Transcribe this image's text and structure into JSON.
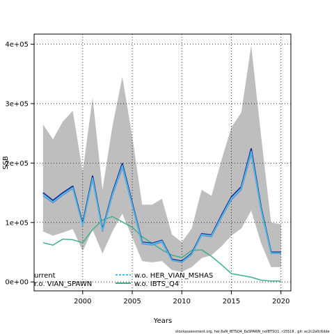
{
  "chart_data": {
    "type": "line",
    "title": "",
    "xlabel": "Years",
    "ylabel": "SSB",
    "xlim": [
      1995.1,
      2021.0
    ],
    "ylim": [
      -15000,
      417000
    ],
    "x_ticks": [
      2000,
      2005,
      2010,
      2015,
      2020
    ],
    "y_ticks": [
      0,
      100000,
      200000,
      300000,
      400000
    ],
    "y_tick_labels": [
      "0e+00",
      "1e+05",
      "2e+05",
      "3e+05",
      "4e+05"
    ],
    "grid": true,
    "x": [
      1996,
      1997,
      1998,
      1999,
      2000,
      2001,
      2002,
      2003,
      2004,
      2005,
      2006,
      2007,
      2008,
      2009,
      2010,
      2011,
      2012,
      2013,
      2014,
      2015,
      2016,
      2017,
      2018,
      2019,
      2020
    ],
    "band": {
      "color": "#bebebe",
      "upper": [
        265000,
        240000,
        270000,
        288000,
        185000,
        310000,
        155000,
        262000,
        345000,
        245000,
        130000,
        130000,
        140000,
        80000,
        67000,
        90000,
        155000,
        145000,
        205000,
        260000,
        285000,
        398000,
        245000,
        100000,
        97000
      ],
      "lower": [
        85000,
        78000,
        83000,
        89000,
        52000,
        88000,
        48000,
        85000,
        115000,
        75000,
        35000,
        33000,
        35000,
        20000,
        17000,
        25000,
        40000,
        45000,
        60000,
        78000,
        90000,
        120000,
        65000,
        25000,
        25000
      ]
    },
    "series": [
      {
        "name": "current",
        "color": "#1f1f8f",
        "values": [
          150000,
          137000,
          150000,
          161000,
          98000,
          178000,
          88000,
          150000,
          199000,
          133000,
          67000,
          65000,
          70000,
          38000,
          35000,
          48000,
          81000,
          79000,
          112000,
          143000,
          160000,
          224000,
          125000,
          50000,
          50000
        ]
      },
      {
        "name": "w.o. VIAN_SPAWN",
        "color": "#6a8fd6",
        "values": [
          145000,
          133000,
          146000,
          157000,
          95000,
          172000,
          85000,
          145000,
          192000,
          128000,
          64000,
          62000,
          67000,
          36000,
          33000,
          46000,
          78000,
          76000,
          108000,
          138000,
          155000,
          215000,
          120000,
          48000,
          48000
        ]
      },
      {
        "name": "w.o. HER_VIAN_MSHAS",
        "color": "#3ec5e8",
        "values": [
          148000,
          135000,
          148000,
          159000,
          96000,
          175000,
          87000,
          148000,
          196000,
          131000,
          66000,
          64000,
          69000,
          37000,
          34000,
          47000,
          80000,
          78000,
          110000,
          141000,
          158000,
          220000,
          123000,
          49000,
          49000
        ]
      },
      {
        "name": "w.o. IBTS_Q4",
        "color": "#3fae8e",
        "values": [
          66000,
          62000,
          72000,
          71000,
          66000,
          88000,
          104000,
          110000,
          101000,
          92000,
          76000,
          65000,
          54000,
          45000,
          41000,
          53000,
          54000,
          43000,
          29000,
          14000,
          11000,
          8000,
          3000,
          1500,
          1500
        ]
      }
    ],
    "legend": {
      "placement": "bottom-left",
      "entries": [
        {
          "label": "urrent",
          "color": "#1f1f8f"
        },
        {
          "label": "w.o. HER_VIAN_MSHAS",
          "color": "#3ec5e8"
        },
        {
          "label": "r.o. VIAN_SPAWN",
          "color": "#6a8fd6"
        },
        {
          "label": "w.o. IBTS_Q4",
          "color": "#3fae8e"
        }
      ]
    },
    "footer_text": "stockassessment.org, her.6aN_IBTSQ4_6aSPAWN_noIBTSQ1, r15518 , git: ec2c2a0c6dde"
  }
}
